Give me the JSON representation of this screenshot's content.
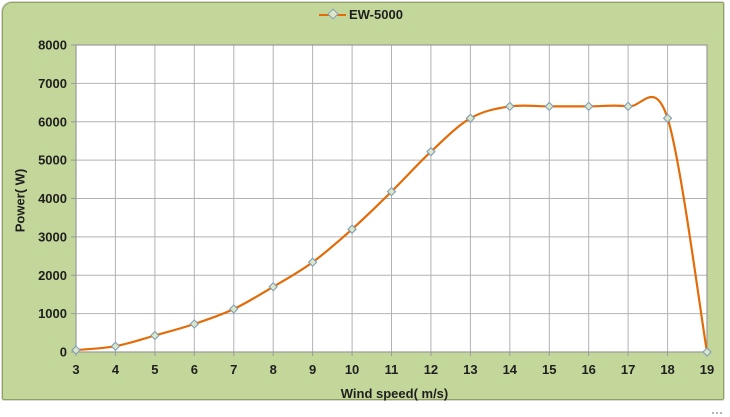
{
  "chart": {
    "frame_background": "#c4d79b",
    "frame_border": "#8fa060"
  },
  "chart_data": {
    "type": "line",
    "title": "",
    "x": [
      3,
      4,
      5,
      6,
      7,
      8,
      9,
      10,
      11,
      12,
      13,
      14,
      15,
      16,
      17,
      18,
      19
    ],
    "series": [
      {
        "name": "EW-5000",
        "values": [
          50,
          150,
          430,
          730,
          1120,
          1700,
          2340,
          3200,
          4180,
          5220,
          6090,
          6400,
          6400,
          6400,
          6400,
          6090,
          0
        ]
      }
    ],
    "xlabel": "Wind speed( m/s)",
    "ylabel": "Power( W)",
    "xlim": [
      3,
      19
    ],
    "ylim": [
      0,
      8000
    ],
    "x_ticks": [
      3,
      4,
      5,
      6,
      7,
      8,
      9,
      10,
      11,
      12,
      13,
      14,
      15,
      16,
      17,
      18,
      19
    ],
    "y_ticks": [
      0,
      1000,
      2000,
      3000,
      4000,
      5000,
      6000,
      7000,
      8000
    ],
    "grid": true,
    "smooth": true,
    "legend_position": "top-center",
    "style": {
      "line_color": "#e36c09",
      "marker": "diamond",
      "marker_fill": "#dde7c6",
      "marker_stroke": "#7f9db9",
      "grid_color": "#b2b2b2",
      "plot_border_color": "#999999",
      "plot_background": "#ffffff",
      "text_color": "#1f1f1f"
    }
  }
}
